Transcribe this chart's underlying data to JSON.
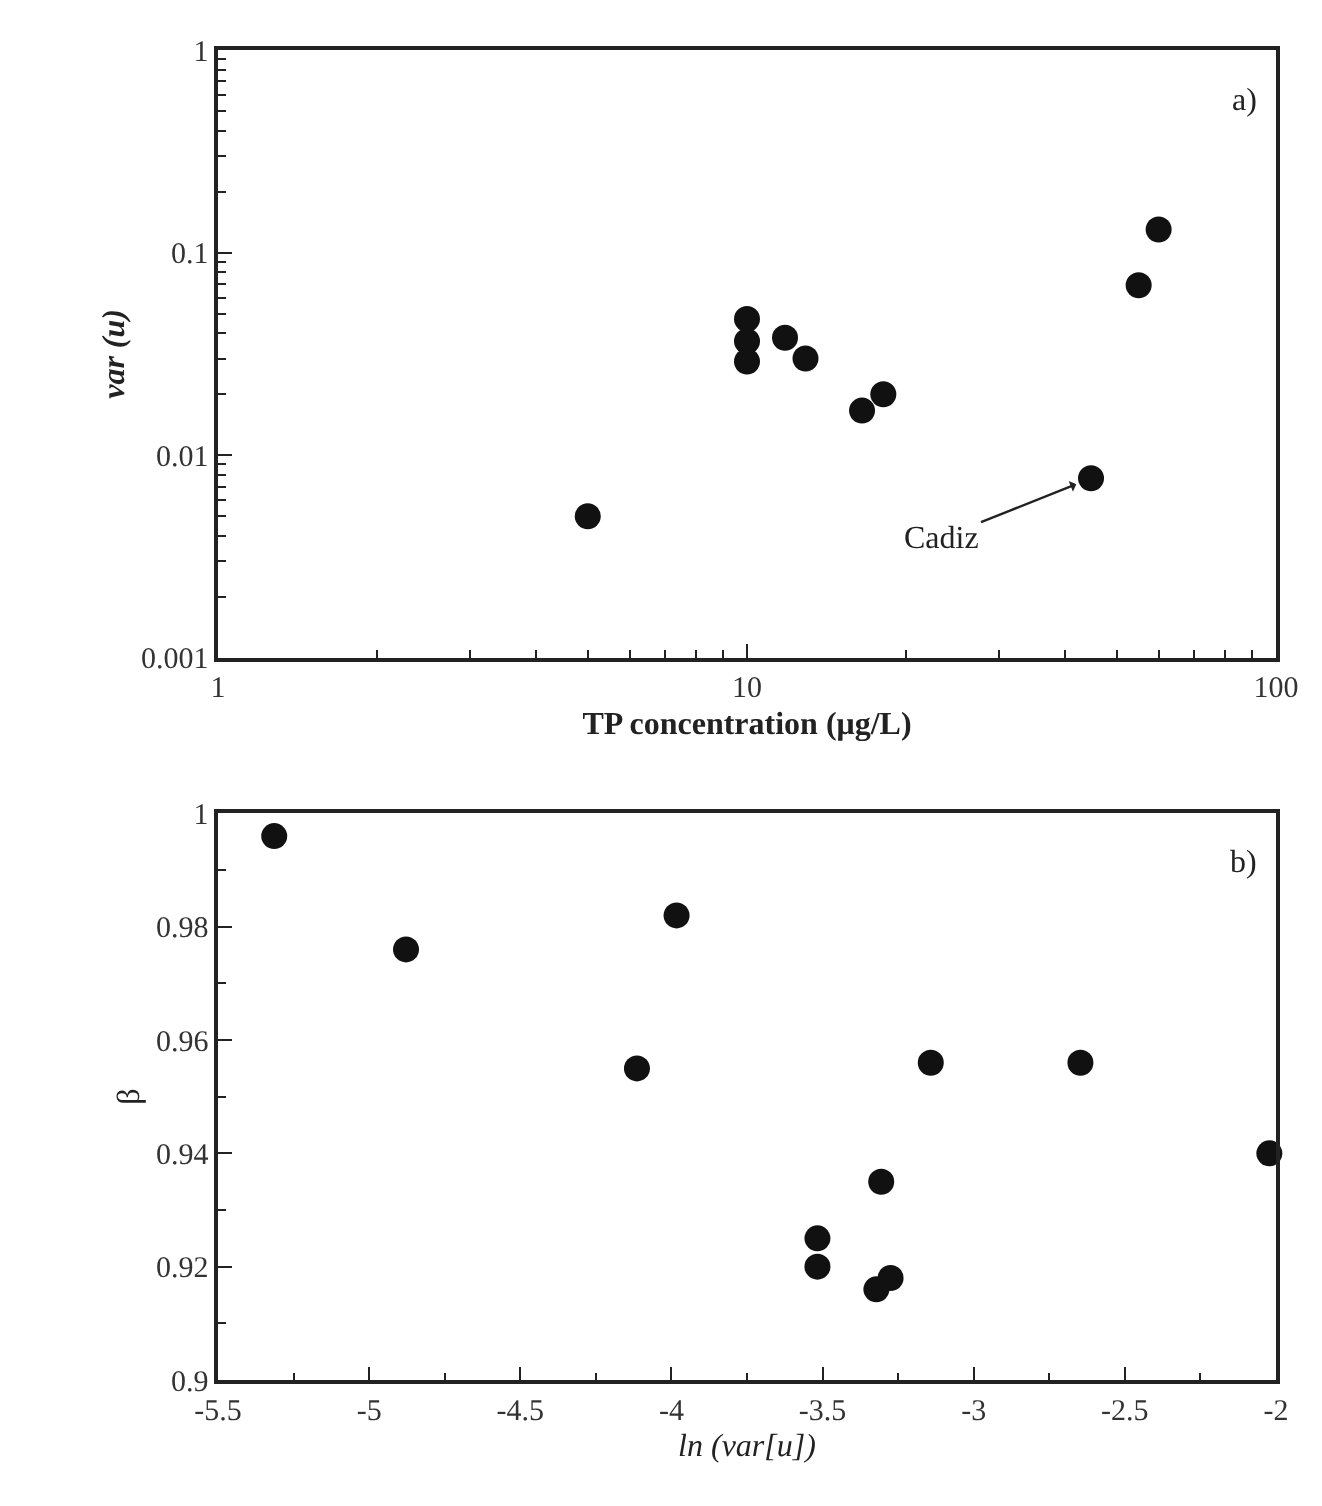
{
  "chart_data": [
    {
      "type": "scatter",
      "xlabel": "TP concentration (μg/L)",
      "ylabel": "var (u)",
      "log": "xy",
      "marker": "circle",
      "x": [
        5.0,
        10,
        10,
        10,
        11.8,
        12.9,
        16.5,
        18.1,
        44.7,
        55,
        60
      ],
      "series": [
        {
          "color": "#111111",
          "values": [
            0.005,
            0.047,
            0.0365,
            0.029,
            0.038,
            0.03,
            0.0166,
            0.02,
            0.0077,
            0.069,
            0.13
          ]
        }
      ],
      "xlim": [
        1,
        100
      ],
      "xticks": [
        1,
        10,
        100
      ],
      "ylim": [
        0.001,
        1
      ],
      "yticks": [
        0.001,
        0.01,
        0.1,
        1
      ],
      "annotations": [
        "a)",
        {
          "text": "Cadiz",
          "x": 44.7,
          "y": 0.0077
        }
      ]
    },
    {
      "type": "scatter",
      "xlabel": "ln (var[u])",
      "ylabel": "β",
      "marker": "circle",
      "x": [
        -5.314,
        -4.878,
        -4.114,
        -3.983,
        -3.517,
        -3.517,
        -3.306,
        -3.322,
        -3.275,
        -3.142,
        -2.647,
        -2.022
      ],
      "series": [
        {
          "color": "#111111",
          "values": [
            0.996,
            0.976,
            0.955,
            0.982,
            0.925,
            0.92,
            0.935,
            0.916,
            0.918,
            0.956,
            0.956,
            0.94
          ]
        }
      ],
      "xlim": [
        -5.5,
        -2
      ],
      "xticks": [
        -5.5,
        -5,
        -4.5,
        -4,
        -3.5,
        -3,
        -2.5,
        -2
      ],
      "ylim": [
        0.9,
        1
      ],
      "yticks": [
        0.9,
        0.92,
        0.94,
        0.96,
        0.98,
        1
      ],
      "annotations": [
        "b)"
      ]
    }
  ]
}
